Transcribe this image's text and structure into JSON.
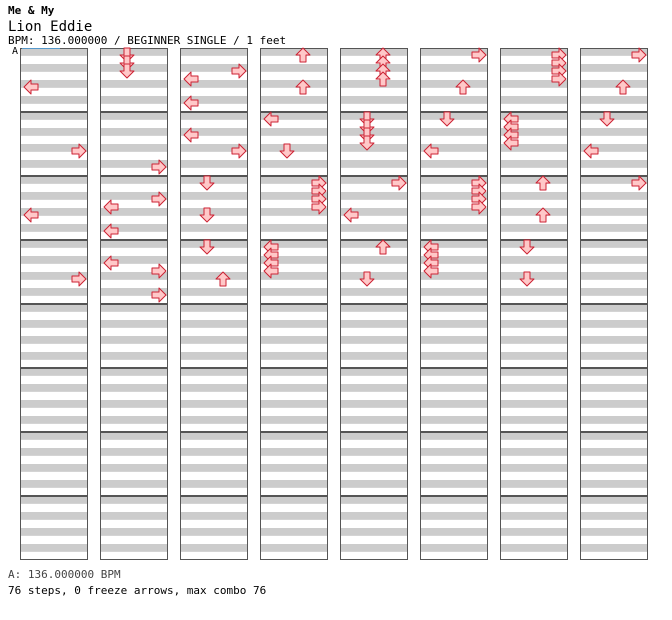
{
  "song": {
    "title": "Me & My",
    "artist": "Lion Eddie",
    "info": "BPM: 136.000000 / BEGINNER SINGLE / 1 feet",
    "bpm_marker": "A"
  },
  "footer": {
    "bpm_line": "A: 136.000000 BPM",
    "stats_line": "76 steps, 0 freeze arrows, max combo 76"
  },
  "colors": {
    "stripe_gray": "#cccccc",
    "border": "#555555",
    "arrow_fill": "#ffc8c8",
    "arrow_stroke": "#cc2233",
    "marker_line": "#5599cc"
  },
  "chart_data": {
    "type": "step-chart",
    "columns": 8,
    "measures_per_column": 8,
    "rows_per_measure": 8,
    "arrows": [
      [
        1,
        0,
        "down"
      ],
      [
        1,
        1,
        "down"
      ],
      [
        1,
        2,
        "down"
      ],
      [
        2,
        3,
        "left"
      ],
      [
        2,
        2,
        "right"
      ],
      [
        3,
        0,
        "up"
      ],
      [
        4,
        0,
        "up"
      ],
      [
        4,
        1,
        "up"
      ],
      [
        4,
        2,
        "up"
      ],
      [
        4,
        3,
        "up"
      ],
      [
        5,
        0,
        "right"
      ],
      [
        6,
        0,
        "right"
      ],
      [
        6,
        1,
        "right"
      ],
      [
        6,
        2,
        "right"
      ],
      [
        6,
        3,
        "right"
      ],
      [
        7,
        0,
        "right"
      ],
      [
        0,
        4,
        "left"
      ],
      [
        2,
        6,
        "left"
      ],
      [
        3,
        4,
        "up"
      ],
      [
        5,
        4,
        "up"
      ],
      [
        7,
        4,
        "up"
      ],
      [
        2,
        10,
        "left"
      ],
      [
        2,
        12,
        "right"
      ],
      [
        3,
        8,
        "left"
      ],
      [
        4,
        8,
        "down"
      ],
      [
        4,
        9,
        "down"
      ],
      [
        4,
        10,
        "down"
      ],
      [
        4,
        11,
        "down"
      ],
      [
        5,
        8,
        "down"
      ],
      [
        6,
        8,
        "left"
      ],
      [
        6,
        9,
        "left"
      ],
      [
        6,
        10,
        "left"
      ],
      [
        6,
        11,
        "left"
      ],
      [
        7,
        8,
        "down"
      ],
      [
        0,
        12,
        "right"
      ],
      [
        1,
        14,
        "right"
      ],
      [
        3,
        12,
        "down"
      ],
      [
        5,
        12,
        "left"
      ],
      [
        7,
        12,
        "left"
      ],
      [
        1,
        18,
        "right"
      ],
      [
        1,
        19,
        "left"
      ],
      [
        2,
        16,
        "down"
      ],
      [
        3,
        16,
        "right"
      ],
      [
        3,
        17,
        "right"
      ],
      [
        3,
        18,
        "right"
      ],
      [
        3,
        19,
        "right"
      ],
      [
        4,
        16,
        "right"
      ],
      [
        5,
        16,
        "right"
      ],
      [
        5,
        17,
        "right"
      ],
      [
        5,
        18,
        "right"
      ],
      [
        5,
        19,
        "right"
      ],
      [
        6,
        16,
        "up"
      ],
      [
        7,
        16,
        "right"
      ],
      [
        0,
        20,
        "left"
      ],
      [
        1,
        22,
        "left"
      ],
      [
        2,
        20,
        "down"
      ],
      [
        4,
        20,
        "left"
      ],
      [
        6,
        20,
        "up"
      ],
      [
        1,
        26,
        "left"
      ],
      [
        1,
        27,
        "right"
      ],
      [
        2,
        24,
        "down"
      ],
      [
        3,
        24,
        "left"
      ],
      [
        3,
        25,
        "left"
      ],
      [
        3,
        26,
        "left"
      ],
      [
        3,
        27,
        "left"
      ],
      [
        4,
        24,
        "up"
      ],
      [
        5,
        24,
        "left"
      ],
      [
        5,
        25,
        "left"
      ],
      [
        5,
        26,
        "left"
      ],
      [
        5,
        27,
        "left"
      ],
      [
        6,
        24,
        "down"
      ],
      [
        0,
        28,
        "right"
      ],
      [
        1,
        30,
        "right"
      ],
      [
        2,
        28,
        "up"
      ],
      [
        4,
        28,
        "down"
      ],
      [
        6,
        28,
        "down"
      ]
    ]
  }
}
